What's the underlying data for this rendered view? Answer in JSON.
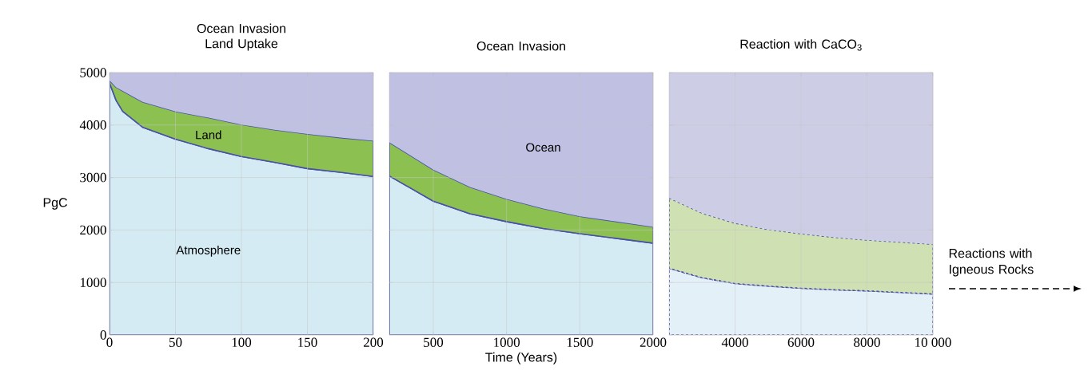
{
  "chart_data": [
    {
      "type": "area",
      "title": "Ocean Invasion Land Uptake",
      "ylabel": "PgC",
      "stacked": true,
      "grid": true,
      "line_style": "solid",
      "x": [
        0,
        5,
        10,
        25,
        50,
        75,
        100,
        125,
        150,
        175,
        200
      ],
      "xlim": [
        0,
        200
      ],
      "xticks": [
        0,
        50,
        100,
        150,
        200
      ],
      "ylim": [
        0,
        5000
      ],
      "yticks": [
        0,
        1000,
        2000,
        3000,
        4000,
        5000
      ],
      "series": [
        {
          "name": "Atmosphere",
          "color": "#d4ebf3",
          "values": [
            4800,
            4470,
            4260,
            3960,
            3730,
            3550,
            3400,
            3290,
            3170,
            3100,
            3020
          ]
        },
        {
          "name": "Land",
          "color": "#8cc152",
          "values": [
            50,
            250,
            390,
            480,
            530,
            590,
            610,
            620,
            660,
            660,
            680
          ]
        },
        {
          "color": "#bfc0e2",
          "values": [
            150,
            280,
            350,
            560,
            740,
            860,
            990,
            1090,
            1170,
            1240,
            1300
          ]
        }
      ]
    },
    {
      "type": "area",
      "title": "Ocean Invasion",
      "xlabel": "Time (Years)",
      "stacked": true,
      "grid": true,
      "line_style": "solid",
      "tick_labels": "x",
      "x": [
        200,
        500,
        750,
        1000,
        1250,
        1500,
        1750,
        2000
      ],
      "xlim": [
        200,
        2000
      ],
      "xticks": [
        500,
        1000,
        1500,
        2000
      ],
      "ylim": [
        0,
        5000
      ],
      "yticks": [
        0,
        1000,
        2000,
        3000,
        4000,
        5000
      ],
      "series": [
        {
          "color": "#d4ebf3",
          "values": [
            3030,
            2550,
            2310,
            2160,
            2030,
            1930,
            1840,
            1750
          ]
        },
        {
          "color": "#8cc152",
          "values": [
            640,
            600,
            510,
            430,
            380,
            330,
            320,
            310
          ]
        },
        {
          "name": "Ocean",
          "color": "#bfc0e2",
          "values": [
            1330,
            1850,
            2180,
            2410,
            2590,
            2740,
            2840,
            2940
          ]
        }
      ]
    },
    {
      "type": "area",
      "title": "Reaction with CaCO$_{3}$",
      "stacked": true,
      "grid": true,
      "line_style": "dashed",
      "tick_labels": "x",
      "annotations": [
        "Reactions with Igneous Rocks"
      ],
      "x": [
        2000,
        3000,
        4000,
        5000,
        6000,
        7000,
        8000,
        9000,
        10000
      ],
      "xlim": [
        2000,
        10000
      ],
      "xticks": [
        4000,
        6000,
        8000,
        {
          "value": 10000,
          "label": "10 000"
        }
      ],
      "ylim": [
        0,
        5000
      ],
      "yticks": [
        0,
        1000,
        2000,
        3000,
        4000,
        5000
      ],
      "series": [
        {
          "color": "#e4f0f8",
          "values": [
            1270,
            1090,
            980,
            930,
            890,
            860,
            840,
            810,
            780
          ]
        },
        {
          "color": "#cfe0b2",
          "values": [
            1340,
            1230,
            1150,
            1080,
            1040,
            1000,
            970,
            960,
            950
          ]
        },
        {
          "color": "#cdcde6",
          "values": [
            2390,
            2680,
            2870,
            2990,
            3070,
            3140,
            3190,
            3230,
            3270
          ]
        }
      ]
    }
  ]
}
